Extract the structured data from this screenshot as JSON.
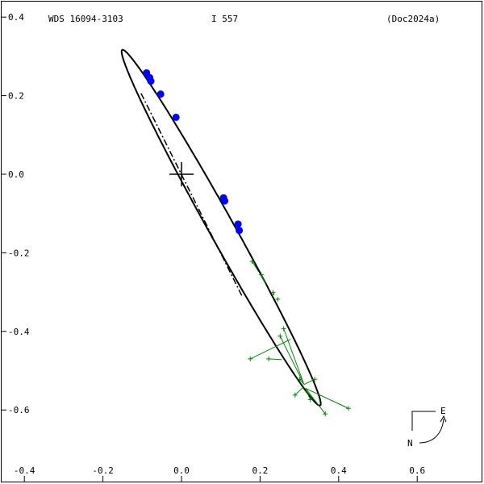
{
  "header": {
    "wds_id": "WDS 16094-3103",
    "discoverer": "I   557",
    "reference": "(Doc2024a)"
  },
  "compass": {
    "east_label": "E",
    "north_label": "N"
  },
  "colors": {
    "orbit": "#000000",
    "measures_good": "#0000ff",
    "measures_micrometer": "#008800",
    "frame": "#000000"
  },
  "chart_data": {
    "type": "scatter",
    "xlim": [
      -0.4,
      0.75
    ],
    "ylim": [
      -0.75,
      0.43
    ],
    "x_ticks": [
      {
        "value": -0.4,
        "label": "-0.4"
      },
      {
        "value": -0.2,
        "label": "-0.2"
      },
      {
        "value": 0.0,
        "label": "0.0"
      },
      {
        "value": 0.2,
        "label": "0.2"
      },
      {
        "value": 0.4,
        "label": "0.4"
      },
      {
        "value": 0.6,
        "label": "0.6"
      }
    ],
    "y_ticks": [
      {
        "value": 0.4,
        "label": "0.4"
      },
      {
        "value": 0.2,
        "label": "0.2"
      },
      {
        "value": 0.0,
        "label": "0.0"
      },
      {
        "value": -0.2,
        "label": "-0.2"
      },
      {
        "value": -0.4,
        "label": "-0.4"
      },
      {
        "value": -0.6,
        "label": "-0.6"
      }
    ],
    "grid": false,
    "primary_star": [
      0.0,
      0.0
    ],
    "orbit_ellipse": {
      "center": [
        0.101,
        -0.136
      ],
      "semi_major": 0.518,
      "semi_minor": 0.032,
      "angle_deg": -60.9
    },
    "line_of_nodes": [
      [
        -0.103,
        0.206
      ],
      [
        0.155,
        -0.312
      ]
    ],
    "blue_points": [
      [
        -0.089,
        0.258
      ],
      [
        -0.081,
        0.246
      ],
      [
        -0.078,
        0.237
      ],
      [
        -0.053,
        0.204
      ],
      [
        -0.014,
        0.145
      ],
      [
        0.107,
        -0.06
      ],
      [
        0.11,
        -0.068
      ],
      [
        0.144,
        -0.127
      ],
      [
        0.147,
        -0.143
      ]
    ],
    "green_points": [
      {
        "obs": [
          0.18,
          -0.222
        ],
        "calc": [
          0.196,
          -0.248
        ]
      },
      {
        "obs": [
          0.203,
          -0.256
        ],
        "calc": [
          0.215,
          -0.281
        ]
      },
      {
        "obs": [
          0.233,
          -0.301
        ],
        "calc": [
          0.236,
          -0.308
        ]
      },
      {
        "obs": [
          0.245,
          -0.318
        ],
        "calc": [
          0.243,
          -0.32
        ]
      },
      {
        "obs": [
          0.26,
          -0.393
        ],
        "calc": [
          0.31,
          -0.53
        ]
      },
      {
        "obs": [
          0.251,
          -0.412
        ],
        "calc": [
          0.312,
          -0.535
        ]
      },
      {
        "obs": [
          0.175,
          -0.47
        ],
        "calc": [
          0.278,
          -0.42
        ]
      },
      {
        "obs": [
          0.222,
          -0.47
        ],
        "calc": [
          0.256,
          -0.472
        ]
      },
      {
        "obs": [
          0.301,
          -0.522
        ],
        "calc": [
          0.312,
          -0.535
        ]
      },
      {
        "obs": [
          0.339,
          -0.522
        ],
        "calc": [
          0.312,
          -0.535
        ]
      },
      {
        "obs": [
          0.289,
          -0.562
        ],
        "calc": [
          0.312,
          -0.54
        ]
      },
      {
        "obs": [
          0.328,
          -0.574
        ],
        "calc": [
          0.315,
          -0.545
        ]
      },
      {
        "obs": [
          0.366,
          -0.61
        ],
        "calc": [
          0.316,
          -0.545
        ]
      },
      {
        "obs": [
          0.425,
          -0.596
        ],
        "calc": [
          0.316,
          -0.545
        ]
      }
    ]
  }
}
